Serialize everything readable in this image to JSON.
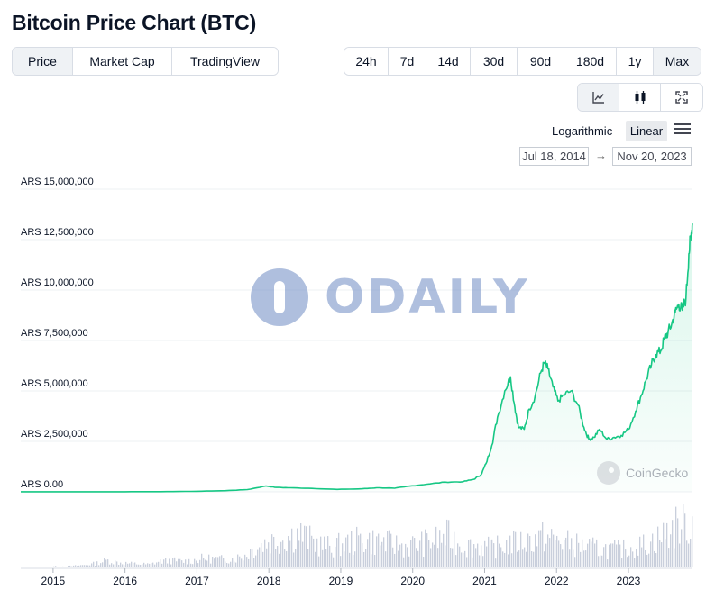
{
  "page": {
    "title": "Bitcoin Price Chart (BTC)"
  },
  "tabs": [
    {
      "label": "Price",
      "active": true
    },
    {
      "label": "Market Cap",
      "active": false
    },
    {
      "label": "TradingView",
      "active": false
    }
  ],
  "ranges": [
    {
      "label": "24h",
      "active": false
    },
    {
      "label": "7d",
      "active": false
    },
    {
      "label": "14d",
      "active": false
    },
    {
      "label": "30d",
      "active": false
    },
    {
      "label": "90d",
      "active": false
    },
    {
      "label": "180d",
      "active": false
    },
    {
      "label": "1y",
      "active": false
    },
    {
      "label": "Max",
      "active": true
    }
  ],
  "views": [
    {
      "icon": "line-chart-icon",
      "active": true
    },
    {
      "icon": "candlestick-icon",
      "active": false
    },
    {
      "icon": "fullscreen-icon",
      "active": false
    }
  ],
  "scale": {
    "logarithmic_label": "Logarithmic",
    "linear_label": "Linear",
    "selected": "Linear"
  },
  "date_range": {
    "from": "Jul 18, 2014",
    "arrow": "→",
    "to": "Nov 20, 2023"
  },
  "watermarks": {
    "odaily": "ODAILY",
    "coingecko": "CoinGecko"
  },
  "colors": {
    "line": "#16c784",
    "area_top": "#16c784",
    "volume": "#c9cfdc",
    "grid": "#eef0f3",
    "accent_bg": "#eff2f5"
  },
  "chart_data": {
    "type": "area",
    "title": "Bitcoin Price Chart (BTC)",
    "currency": "ARS",
    "y_tick_labels": [
      "ARS 15,000,000",
      "ARS 12,500,000",
      "ARS 10,000,000",
      "ARS 7,500,000",
      "ARS 5,000,000",
      "ARS 2,500,000",
      "ARS 0.00"
    ],
    "y_ticks": [
      15000000,
      12500000,
      10000000,
      7500000,
      5000000,
      2500000,
      0
    ],
    "ylim": [
      0,
      15000000
    ],
    "x_tick_labels": [
      "2015",
      "2016",
      "2017",
      "2018",
      "2019",
      "2020",
      "2021",
      "2022",
      "2023"
    ],
    "x_ticks": [
      2015,
      2016,
      2017,
      2018,
      2019,
      2020,
      2021,
      2022,
      2023
    ],
    "xlim": [
      2014.55,
      2023.89
    ],
    "grid": true,
    "series": [
      {
        "x": [
          2014.55,
          2015.0,
          2015.5,
          2016.0,
          2016.5,
          2017.0,
          2017.4,
          2017.7,
          2017.96,
          2018.1,
          2018.3,
          2018.6,
          2018.95,
          2019.3,
          2019.5,
          2019.75,
          2019.95,
          2020.2,
          2020.45,
          2020.7,
          2020.85,
          2020.95,
          2021.02,
          2021.1,
          2021.18,
          2021.28,
          2021.36,
          2021.42,
          2021.47,
          2021.55,
          2021.62,
          2021.7,
          2021.78,
          2021.83,
          2021.88,
          2021.95,
          2022.02,
          2022.1,
          2022.2,
          2022.3,
          2022.38,
          2022.45,
          2022.52,
          2022.6,
          2022.7,
          2022.8,
          2022.9,
          2023.0,
          2023.1,
          2023.18,
          2023.25,
          2023.32,
          2023.38,
          2023.45,
          2023.5,
          2023.55,
          2023.6,
          2023.65,
          2023.7,
          2023.75,
          2023.8,
          2023.84,
          2023.87,
          2023.89
        ],
        "values": [
          4500,
          3500,
          4000,
          6500,
          11000,
          25000,
          60000,
          110000,
          290000,
          220000,
          200000,
          170000,
          120000,
          150000,
          200000,
          180000,
          280000,
          380000,
          480000,
          500000,
          620000,
          850000,
          1400000,
          2300000,
          3700000,
          5000000,
          5700000,
          4200000,
          3200000,
          3100000,
          4100000,
          4700000,
          5900000,
          6400000,
          6100000,
          5200000,
          4500000,
          4800000,
          5000000,
          4300000,
          3200000,
          2600000,
          2700000,
          3100000,
          2600000,
          2700000,
          2800000,
          3100000,
          4000000,
          4800000,
          5600000,
          6300000,
          6800000,
          7000000,
          7600000,
          7900000,
          8300000,
          8900000,
          9300000,
          9000000,
          9600000,
          11800000,
          12700000,
          13300000
        ]
      }
    ],
    "volume_share": [
      0.01,
      0.01,
      0.01,
      0.02,
      0.02,
      0.03,
      0.05,
      0.08,
      0.14,
      0.1,
      0.08,
      0.07,
      0.06,
      0.12,
      0.14,
      0.12,
      0.13,
      0.18,
      0.17,
      0.16,
      0.18,
      0.24,
      0.4,
      0.5,
      0.55,
      0.6,
      0.68,
      0.55,
      0.45,
      0.4,
      0.45,
      0.5,
      0.55,
      0.52,
      0.5,
      0.45,
      0.42,
      0.45,
      0.5,
      0.55,
      0.62,
      0.48,
      0.42,
      0.44,
      0.38,
      0.42,
      0.48,
      0.5,
      0.55,
      0.6,
      0.55,
      0.5,
      0.45,
      0.4,
      0.38,
      0.36,
      0.35,
      0.38,
      0.42,
      0.5,
      0.6,
      0.75,
      0.9,
      0.85
    ]
  }
}
